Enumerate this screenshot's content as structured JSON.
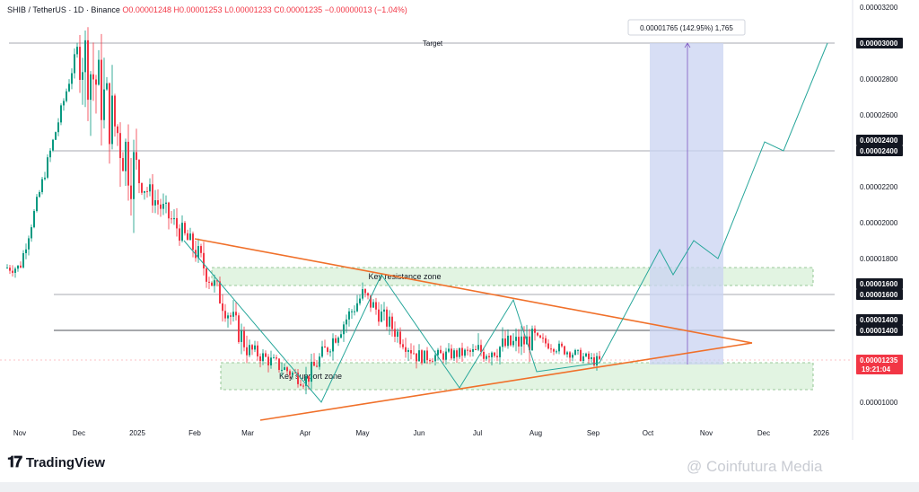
{
  "header": {
    "symbol": "SHIB / TetherUS · 1D · Binance",
    "open": "O0.00001248",
    "high": "H0.00001253",
    "low": "L0.00001233",
    "close": "C0.00001235",
    "change": "−0.00000013 (−1.04%)"
  },
  "brand": {
    "name": "TradingView",
    "logo": "tradingview-logo-icon"
  },
  "watermark": "@ Coinfutura Media",
  "colors": {
    "up": "#089981",
    "down": "#f23645",
    "trend": "#f0702a",
    "zone_fill": "#d8f0d8",
    "zone_stroke": "#7cb87c",
    "projection": "#26a69a",
    "target_box": "#c9d3f2",
    "measure": "#7e57c2"
  },
  "chart_data": {
    "type": "candlestick",
    "symbol": "SHIB/USDT",
    "interval": "1D",
    "x_ticks": [
      "Nov",
      "Dec",
      "2025",
      "Feb",
      "Mar",
      "Apr",
      "May",
      "Jun",
      "Jul",
      "Aug",
      "Sep",
      "Oct",
      "Nov",
      "Dec",
      "2026"
    ],
    "y_ticks": [
      "0.00003200",
      "0.00003000",
      "0.00002800",
      "0.00002600",
      "0.00002400",
      "0.00002200",
      "0.00002000",
      "0.00001800",
      "0.00001600",
      "0.00001400",
      "0.00001000"
    ],
    "ylim": [
      8e-06,
      3.22e-05
    ],
    "price_path": [
      [
        "Nov",
        1.75e-05
      ],
      [
        "Dec",
        3e-05
      ],
      [
        "2025",
        2.25e-05
      ],
      [
        "Feb",
        1.85e-05
      ],
      [
        "Mar",
        1.3e-05
      ],
      [
        "Apr",
        1.12e-05
      ],
      [
        "May",
        1.6e-05
      ],
      [
        "Jun",
        1.25e-05
      ],
      [
        "Jul",
        1.28e-05
      ],
      [
        "Aug",
        1.35e-05
      ],
      [
        "Sep",
        1.23e-05
      ]
    ],
    "price_range": {
      "Nov": [
        1.65e-05,
        1.9e-05
      ],
      "Dec": [
        1.85e-05,
        3.3e-05
      ],
      "2025": [
        2.05e-05,
        2.5e-05
      ],
      "Feb": [
        1.7e-05,
        2.2e-05
      ],
      "Mar": [
        1.15e-05,
        1.45e-05
      ],
      "Apr": [
        1.02e-05,
        1.4e-05
      ],
      "May": [
        1.3e-05,
        1.68e-05
      ],
      "Jun": [
        1.15e-05,
        1.4e-05
      ],
      "Jul": [
        1.08e-05,
        1.55e-05
      ],
      "Aug": [
        1.18e-05,
        1.4e-05
      ],
      "Sep": [
        1.2e-05,
        1.3e-05
      ]
    },
    "horizontal_levels": [
      {
        "label": "Target",
        "value": 3e-05,
        "tag": "0.00003000"
      },
      {
        "value": 2.4e-05,
        "tag": "0.00002400"
      },
      {
        "value": 1.6e-05,
        "tag": "0.00001600"
      },
      {
        "value": 1.4e-05,
        "tag": "0.00001400"
      }
    ],
    "current_price": {
      "tag": "0.00001235",
      "countdown": "19:21:04",
      "value": 1.235e-05
    },
    "zones": [
      {
        "label": "Key resistance zone",
        "from": "Feb",
        "to": "Nov",
        "low": 1.65e-05,
        "high": 1.75e-05
      },
      {
        "label": "Key support zone",
        "from": "Feb",
        "to": "Nov",
        "low": 1.07e-05,
        "high": 1.22e-05
      }
    ],
    "triangle": {
      "upper": [
        [
          "Feb",
          1.91e-05
        ],
        [
          "Dec",
          1.33e-05
        ]
      ],
      "lower": [
        [
          "Mar",
          9e-06
        ],
        [
          "Dec",
          1.33e-05
        ]
      ]
    },
    "zigzag": [
      [
        "Feb",
        1.9e-05
      ],
      [
        "Apr",
        1e-05
      ],
      [
        "May",
        1.71e-05
      ],
      [
        "Jun",
        1.08e-05
      ],
      [
        "Jul",
        1.57e-05
      ],
      [
        "Aug",
        1.17e-05
      ],
      [
        "Sep",
        1.22e-05
      ]
    ],
    "projection": [
      [
        "Sep",
        1.22e-05
      ],
      [
        "Oct",
        1.85e-05
      ],
      [
        "Oct",
        1.71e-05
      ],
      [
        "Nov",
        1.9e-05
      ],
      [
        "Nov",
        1.8e-05
      ],
      [
        "Dec",
        2.45e-05
      ],
      [
        "Dec",
        2.4e-05
      ],
      [
        "2026",
        3e-05
      ]
    ],
    "measurement": {
      "label": "0.00001765 (142.95%) 1,765",
      "from": "Oct",
      "to": "Nov",
      "bottom": 1.23e-05,
      "top": 3e-05
    }
  }
}
